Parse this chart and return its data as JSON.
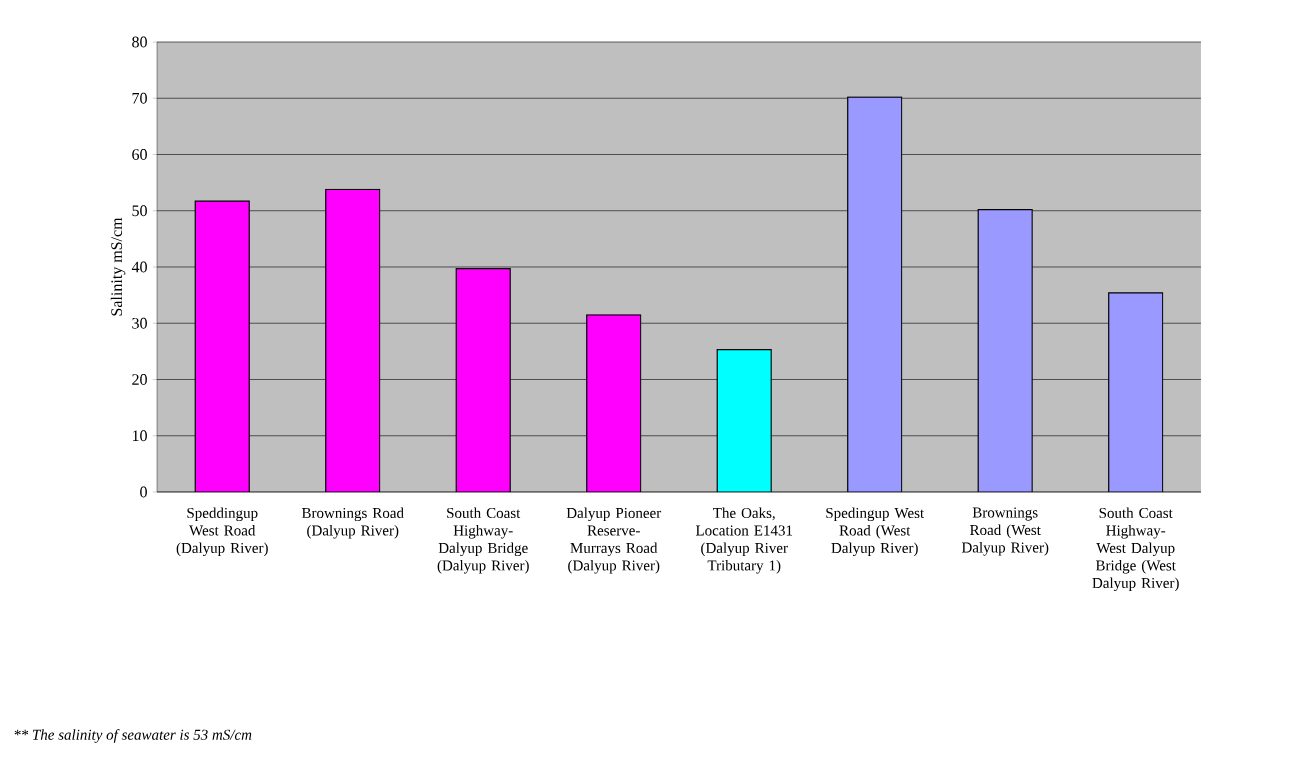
{
  "chart_data": {
    "type": "bar",
    "categories": [
      "Speddingup West Road (Dalyup River)",
      "Brownings Road (Dalyup River)",
      "South Coast Highway-Dalyup Bridge (Dalyup River)",
      "Dalyup Pioneer Reserve-Murrays Road (Dalyup River)",
      "The Oaks, Location E1431 (Dalyup River Tributary 1)",
      "Spedingup West Road (West Dalyup River)",
      "Brownings Road (West Dalyup River)",
      "South Coast Highway-West Dalyup Bridge (West Dalyup River)"
    ],
    "values": [
      51.7,
      53.8,
      39.7,
      31.5,
      25.3,
      70.2,
      50.2,
      35.4
    ],
    "colors": [
      "#ff00ff",
      "#ff00ff",
      "#ff00ff",
      "#ff00ff",
      "#00ffff",
      "#9999ff",
      "#9999ff",
      "#9999ff"
    ],
    "ylabel": "Salinity mS/cm",
    "ylim": [
      0,
      80
    ],
    "yticks": [
      0,
      10,
      20,
      30,
      40,
      50,
      60,
      70,
      80
    ],
    "grid": "y",
    "annotations": [
      "** The salinity of seawater is 53 mS/cm"
    ]
  }
}
